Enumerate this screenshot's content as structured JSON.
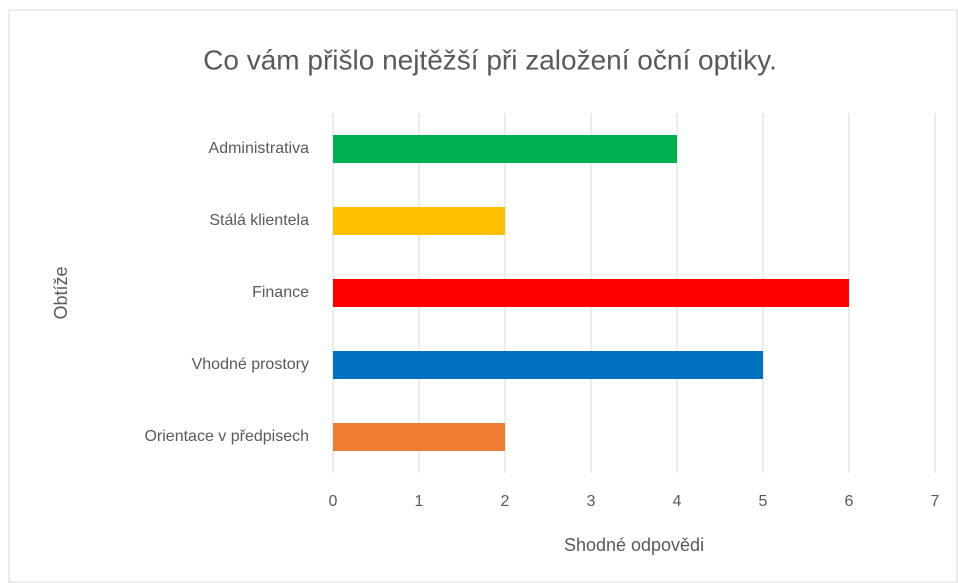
{
  "chart_data": {
    "type": "bar",
    "orientation": "horizontal",
    "title": "Co vám přišlo nejtěžší při založení oční optiky.",
    "x_label": "Shodné odpovědi",
    "y_label": "Obtíže",
    "categories": [
      "Administrativa",
      "Stálá klientela",
      "Finance",
      "Vhodné prostory",
      "Orientace v předpisech"
    ],
    "values": [
      4,
      2,
      6,
      5,
      2
    ],
    "colors": [
      "#00b050",
      "#ffc000",
      "#ff0000",
      "#0070c0",
      "#ed7d31"
    ],
    "xlim": [
      0,
      7
    ],
    "xticks": [
      0,
      1,
      2,
      3,
      4,
      5,
      6,
      7
    ],
    "grid": true
  }
}
